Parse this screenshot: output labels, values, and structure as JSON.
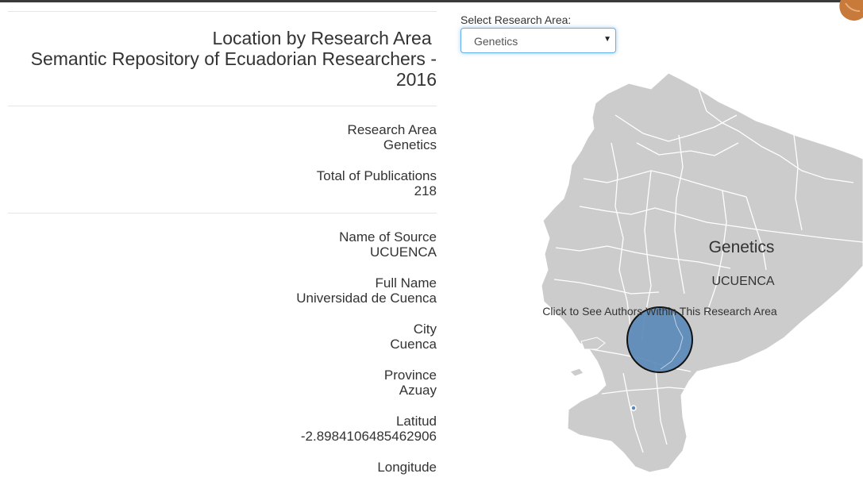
{
  "title": {
    "line1": "Location by Research Area ",
    "line2": "Semantic Repository of Ecuadorian Researchers -",
    "line3": "2016"
  },
  "summary": {
    "research_area_label": "Research Area",
    "research_area_value": "Genetics",
    "publications_label": "Total of Publications",
    "publications_value": "218"
  },
  "details": {
    "source_label": "Name of Source",
    "source_value": "UCUENCA",
    "fullname_label": "Full Name",
    "fullname_value": "Universidad de Cuenca",
    "city_label": "City",
    "city_value": "Cuenca",
    "province_label": "Province",
    "province_value": "Azuay",
    "latitude_label": "Latitud",
    "latitude_value": "-2.8984106485462906",
    "longitude_label": "Longitude"
  },
  "selector": {
    "label": "Select Research Area:",
    "selected": "Genetics"
  },
  "map": {
    "area_title": "Genetics",
    "source_label": "UCUENCA",
    "hint": "Click to See Authors Within This Research Area",
    "colors": {
      "land": "#cccccc",
      "borders": "#ffffff",
      "bubble": "#5b8ab8",
      "bubble_stroke": "#111111"
    }
  }
}
